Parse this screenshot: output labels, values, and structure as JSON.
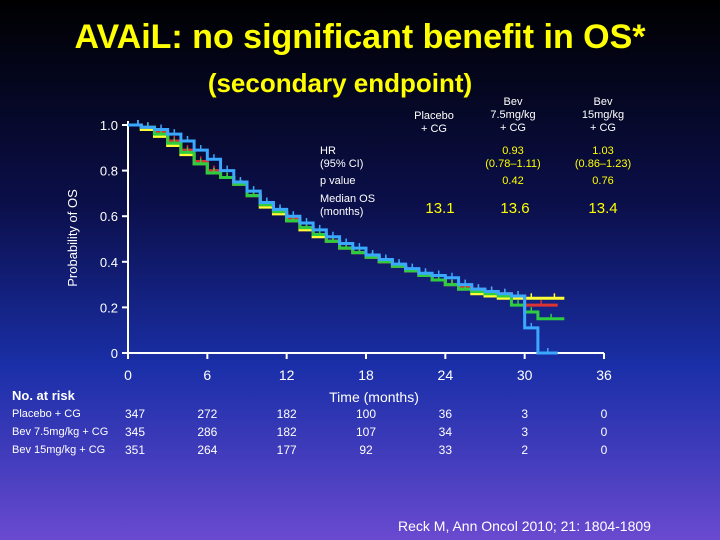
{
  "title": "AVAiL: no significant benefit in OS*",
  "subtitle": "(secondary endpoint)",
  "table": {
    "columns": [
      {
        "line1": "",
        "line2": "Placebo",
        "line3": "+ CG"
      },
      {
        "line1": "Bev",
        "line2": "7.5mg/kg",
        "line3": "+ CG"
      },
      {
        "line1": "Bev",
        "line2": "15mg/kg",
        "line3": "+ CG"
      }
    ],
    "rows": [
      {
        "label1": "HR",
        "label2": "(95% CI)",
        "values": [
          {
            "a": "",
            "b": ""
          },
          {
            "a": "0.93",
            "b": "(0.78–1.11)"
          },
          {
            "a": "1.03",
            "b": "(0.86–1.23)"
          }
        ]
      },
      {
        "label1": "p value",
        "label2": "",
        "values": [
          {
            "a": "",
            "b": ""
          },
          {
            "a": "0.42",
            "b": ""
          },
          {
            "a": "0.76",
            "b": ""
          }
        ]
      },
      {
        "label1": "Median OS",
        "label2": "(months)",
        "values": [
          {
            "a": "13.1",
            "b": ""
          },
          {
            "a": "13.6",
            "b": ""
          },
          {
            "a": "13.4",
            "b": ""
          }
        ]
      }
    ]
  },
  "risk": {
    "heading": "No. at risk",
    "rows": [
      {
        "label": "Placebo + CG",
        "values": [
          "347",
          "272",
          "182",
          "100",
          "36",
          "3",
          "0"
        ]
      },
      {
        "label": "Bev 7.5mg/kg + CG",
        "values": [
          "345",
          "286",
          "182",
          "107",
          "34",
          "3",
          "0"
        ]
      },
      {
        "label": "Bev 15mg/kg + CG",
        "values": [
          "351",
          "264",
          "177",
          "92",
          "33",
          "2",
          "0"
        ]
      }
    ]
  },
  "citation": "Reck M, Ann Oncol 2010; 21: 1804-1809",
  "chart_data": {
    "type": "line",
    "step": true,
    "xlabel": "Time (months)",
    "ylabel": "Probability of OS",
    "xlim": [
      0,
      36
    ],
    "ylim": [
      0,
      1.0
    ],
    "xticks": [
      "0",
      "6",
      "12",
      "18",
      "24",
      "30",
      "36"
    ],
    "yticks": [
      {
        "v": 0,
        "label": "0"
      },
      {
        "v": 0.2,
        "label": "0.2"
      },
      {
        "v": 0.4,
        "label": "0.4"
      },
      {
        "v": 0.6,
        "label": "0.6"
      },
      {
        "v": 0.8,
        "label": "0.8"
      },
      {
        "v": 1.0,
        "label": "1.0"
      }
    ],
    "series": [
      {
        "color": "#ffff33",
        "x": [
          0,
          0.5,
          1,
          2,
          3,
          4,
          5,
          6,
          7,
          8,
          9,
          10,
          11,
          12,
          13,
          14,
          15,
          16,
          17,
          18,
          19,
          20,
          21,
          22,
          23,
          24,
          25,
          26,
          27,
          28,
          29.5,
          31.5,
          33
        ],
        "y": [
          1.0,
          1.0,
          0.98,
          0.95,
          0.91,
          0.87,
          0.83,
          0.79,
          0.77,
          0.74,
          0.69,
          0.64,
          0.61,
          0.58,
          0.54,
          0.51,
          0.49,
          0.46,
          0.44,
          0.42,
          0.4,
          0.38,
          0.36,
          0.34,
          0.32,
          0.3,
          0.28,
          0.26,
          0.25,
          0.24,
          0.24,
          0.24,
          0.24
        ]
      },
      {
        "color": "#dd3333",
        "x": [
          0,
          0.5,
          1,
          2,
          3,
          4,
          5,
          6,
          7,
          8,
          9,
          10,
          11,
          12,
          13,
          14,
          15,
          16,
          17,
          18,
          19,
          20,
          21,
          22,
          23,
          24,
          25,
          26,
          27,
          28,
          29,
          30,
          32.5
        ],
        "y": [
          1.0,
          1.0,
          0.99,
          0.97,
          0.93,
          0.89,
          0.84,
          0.8,
          0.77,
          0.74,
          0.69,
          0.65,
          0.62,
          0.59,
          0.55,
          0.52,
          0.49,
          0.46,
          0.44,
          0.42,
          0.4,
          0.38,
          0.36,
          0.34,
          0.32,
          0.3,
          0.29,
          0.28,
          0.27,
          0.26,
          0.25,
          0.21,
          0.21
        ]
      },
      {
        "color": "#2ecc40",
        "x": [
          0,
          0.5,
          1,
          2,
          3,
          4,
          5,
          6,
          7,
          8,
          9,
          10,
          11,
          12,
          13,
          14,
          15,
          16,
          17,
          18,
          19,
          20,
          21,
          22,
          23,
          24,
          25,
          26,
          27,
          28,
          29,
          30,
          31,
          33
        ],
        "y": [
          1.0,
          1.0,
          0.99,
          0.96,
          0.92,
          0.88,
          0.83,
          0.79,
          0.77,
          0.74,
          0.69,
          0.65,
          0.62,
          0.58,
          0.55,
          0.52,
          0.49,
          0.46,
          0.44,
          0.42,
          0.4,
          0.38,
          0.36,
          0.34,
          0.32,
          0.3,
          0.28,
          0.27,
          0.26,
          0.25,
          0.21,
          0.18,
          0.15,
          0.15
        ]
      },
      {
        "color": "#3aa8ff",
        "x": [
          0,
          0.5,
          1,
          2,
          3,
          4,
          5,
          6,
          7,
          8,
          9,
          10,
          11,
          12,
          13,
          14,
          15,
          16,
          17,
          18,
          19,
          20,
          21,
          22,
          23,
          24,
          25,
          26,
          27,
          28,
          29,
          30,
          31,
          32.5
        ],
        "y": [
          1.0,
          1.0,
          0.99,
          0.98,
          0.96,
          0.93,
          0.89,
          0.85,
          0.8,
          0.75,
          0.71,
          0.66,
          0.63,
          0.6,
          0.57,
          0.54,
          0.51,
          0.48,
          0.46,
          0.43,
          0.41,
          0.39,
          0.37,
          0.35,
          0.34,
          0.33,
          0.3,
          0.28,
          0.27,
          0.26,
          0.25,
          0.11,
          0.0,
          0.0
        ]
      }
    ]
  }
}
